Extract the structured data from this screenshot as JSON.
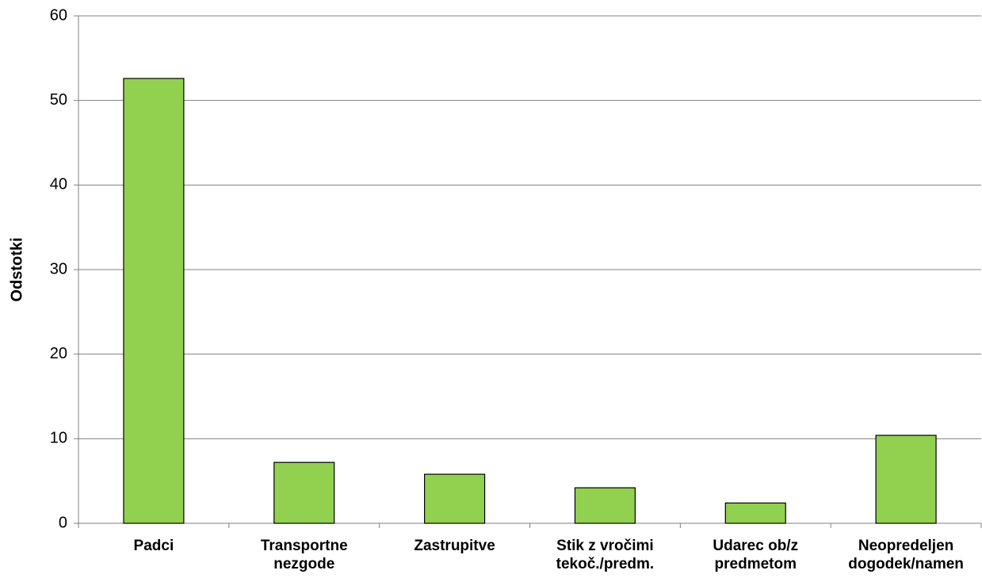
{
  "chart_data": {
    "type": "bar",
    "y_label": "Odstotki",
    "categories": [
      "Padci",
      "Transportne\nnezgode",
      "Zastrupitve",
      "Stik z vročimi\ntekoč./predm.",
      "Udarec ob/z\npredmetom",
      "Neopredeljen\ndogodek/namen"
    ],
    "values": [
      52.6,
      7.2,
      5.8,
      4.2,
      2.4,
      10.4
    ],
    "color": "#92d050",
    "ylim": [
      0,
      60
    ],
    "yticks": [
      0,
      10,
      20,
      30,
      40,
      50,
      60
    ],
    "grid": true
  }
}
